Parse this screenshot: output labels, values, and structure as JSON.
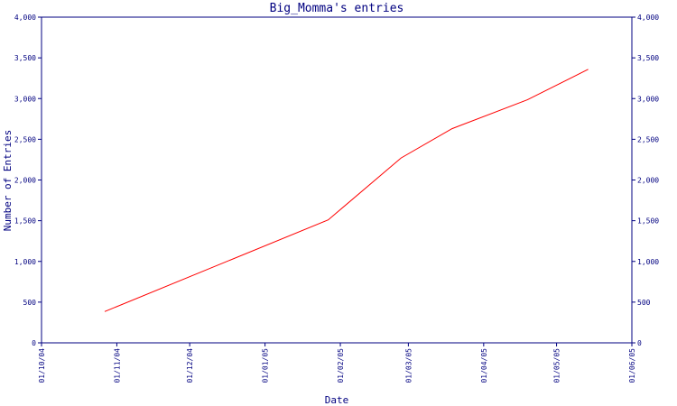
{
  "chart_data": {
    "type": "line",
    "title": "Big_Momma's entries",
    "xlabel": "Date",
    "ylabel": "Number of Entries",
    "x_ticks": [
      "01/10/04",
      "01/11/04",
      "01/12/04",
      "01/01/05",
      "01/02/05",
      "01/03/05",
      "01/04/05",
      "01/05/05",
      "01/06/05"
    ],
    "y_ticks": [
      "0",
      "500",
      "1,000",
      "1,500",
      "2,000",
      "2,500",
      "3,000",
      "3,500",
      "4,000"
    ],
    "ylim": [
      0,
      4000
    ],
    "xlim": [
      "2004-10-01",
      "2005-06-01"
    ],
    "secondary_y_axis": true,
    "grid": false,
    "series": [
      {
        "color": "#ff0000",
        "points": [
          {
            "x": "2004-10-27",
            "y": 385
          },
          {
            "x": "2005-01-27",
            "y": 1510
          },
          {
            "x": "2005-02-26",
            "y": 2270
          },
          {
            "x": "2005-03-19",
            "y": 2630
          },
          {
            "x": "2005-04-19",
            "y": 2985
          },
          {
            "x": "2005-05-14",
            "y": 3360
          }
        ]
      }
    ]
  }
}
